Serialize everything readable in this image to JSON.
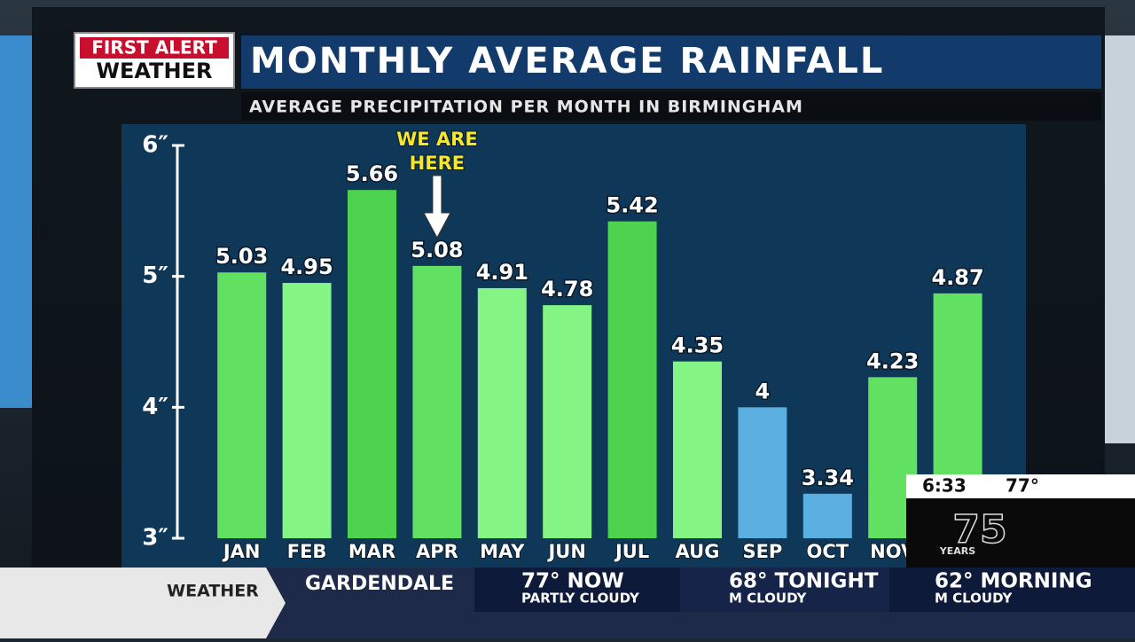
{
  "branding": {
    "logo_top": "FIRST ALERT",
    "logo_bottom": "WEATHER"
  },
  "chart_data": {
    "type": "bar",
    "title": "MONTHLY AVERAGE RAINFALL",
    "subtitle": "AVERAGE PRECIPITATION PER MONTH IN BIRMINGHAM",
    "categories": [
      "JAN",
      "FEB",
      "MAR",
      "APR",
      "MAY",
      "JUN",
      "JUL",
      "AUG",
      "SEP",
      "OCT",
      "NOV",
      null
    ],
    "values": [
      5.03,
      4.95,
      5.66,
      5.08,
      4.91,
      4.78,
      5.42,
      4.35,
      4,
      3.34,
      4.23,
      4.87
    ],
    "colors": [
      "#62e062",
      "#84f484",
      "#4cd24c",
      "#62e062",
      "#84f484",
      "#84f484",
      "#4cd24c",
      "#84f484",
      "#5aaee0",
      "#5aaee0",
      "#62e062",
      "#62e062"
    ],
    "ylim": [
      3,
      6
    ],
    "yticks": [
      {
        "value": 3,
        "label": "3″"
      },
      {
        "value": 4,
        "label": "4″"
      },
      {
        "value": 5,
        "label": "5″"
      },
      {
        "value": 6,
        "label": "6″"
      }
    ],
    "annotation_lines": [
      "WE ARE",
      "HERE"
    ]
  },
  "clock": {
    "time": "6:33",
    "temp": "77°",
    "anniversary": "75",
    "anniversary_unit": "YEARS"
  },
  "ticker": {
    "section": "WEATHER",
    "location": "GARDENDALE",
    "items": [
      {
        "headline": "77° NOW",
        "detail": "PARTLY CLOUDY"
      },
      {
        "headline": "68° TONIGHT",
        "detail": "M CLOUDY"
      },
      {
        "headline": "62° MORNING",
        "detail": "M CLOUDY"
      }
    ]
  }
}
